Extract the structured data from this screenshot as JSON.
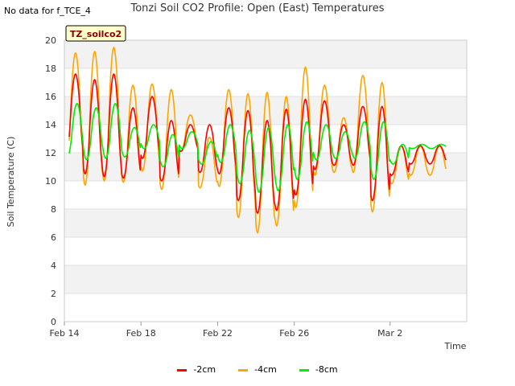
{
  "note": "No data for f_TCE_4",
  "title": "Tonzi Soil CO2 Profile: Open (East) Temperatures",
  "badge": "TZ_soilco2",
  "chart_data": {
    "type": "line",
    "title": "Tonzi Soil CO2 Profile: Open (East) Temperatures",
    "xlabel": "Time",
    "ylabel": "Soil Temperature (C)",
    "ylim": [
      0,
      20
    ],
    "yticks": [
      0,
      2,
      4,
      6,
      8,
      10,
      12,
      14,
      16,
      18,
      20
    ],
    "xlim": [
      "2024-02-14",
      "2024-03-06"
    ],
    "xticks": [
      {
        "date": "2024-02-14",
        "label": "Feb 14"
      },
      {
        "date": "2024-02-18",
        "label": "Feb 18"
      },
      {
        "date": "2024-02-22",
        "label": "Feb 22"
      },
      {
        "date": "2024-02-26",
        "label": "Feb 26"
      },
      {
        "date": "2024-03-02",
        "label": "Mar 2"
      }
    ],
    "grid": true,
    "legend_position": "bottom",
    "days": [
      "2024-02-14",
      "2024-02-15",
      "2024-02-16",
      "2024-02-17",
      "2024-02-18",
      "2024-02-19",
      "2024-02-20",
      "2024-02-21",
      "2024-02-22",
      "2024-02-23",
      "2024-02-24",
      "2024-02-25",
      "2024-02-26",
      "2024-02-27",
      "2024-02-28",
      "2024-02-29",
      "2024-03-01",
      "2024-03-02",
      "2024-03-03",
      "2024-03-04"
    ],
    "series": [
      {
        "name": "-2cm",
        "color": "#ff0000",
        "daily_min": [
          11.8,
          10.5,
          10.3,
          10.2,
          11.6,
          10.0,
          12.1,
          10.6,
          10.5,
          8.6,
          7.7,
          7.9,
          9.0,
          10.8,
          11.1,
          11.1,
          8.6,
          10.4,
          11.2,
          11.2
        ],
        "daily_max": [
          17.6,
          17.2,
          17.6,
          15.2,
          16.0,
          14.3,
          14.0,
          14.0,
          15.2,
          15.0,
          14.3,
          15.1,
          15.8,
          15.7,
          14.0,
          15.3,
          15.3,
          12.5,
          12.5,
          12.5
        ]
      },
      {
        "name": "-4cm",
        "color": "#ffa500",
        "daily_min": [
          11.0,
          9.7,
          10.0,
          9.9,
          10.7,
          9.4,
          12.1,
          9.5,
          9.6,
          7.4,
          6.3,
          6.8,
          8.1,
          10.4,
          10.6,
          10.6,
          7.8,
          9.8,
          10.4,
          10.4
        ],
        "daily_max": [
          19.1,
          19.2,
          19.5,
          16.8,
          16.9,
          16.5,
          14.7,
          13.1,
          16.5,
          16.2,
          16.3,
          16.0,
          18.1,
          16.8,
          14.5,
          17.5,
          17.0,
          12.5,
          12.5,
          12.5
        ]
      },
      {
        "name": "-8cm",
        "color": "#00ee00",
        "daily_min": [
          11.7,
          11.5,
          11.6,
          11.7,
          12.3,
          11.0,
          12.3,
          11.2,
          11.3,
          9.8,
          9.2,
          9.3,
          10.1,
          11.5,
          11.6,
          11.6,
          10.1,
          11.2,
          12.3,
          12.3
        ],
        "daily_max": [
          15.5,
          15.2,
          15.5,
          13.8,
          14.0,
          13.3,
          13.5,
          12.8,
          14.0,
          13.6,
          13.8,
          14.0,
          14.2,
          14.0,
          13.5,
          14.2,
          14.2,
          12.6,
          12.6,
          12.6
        ]
      }
    ]
  }
}
